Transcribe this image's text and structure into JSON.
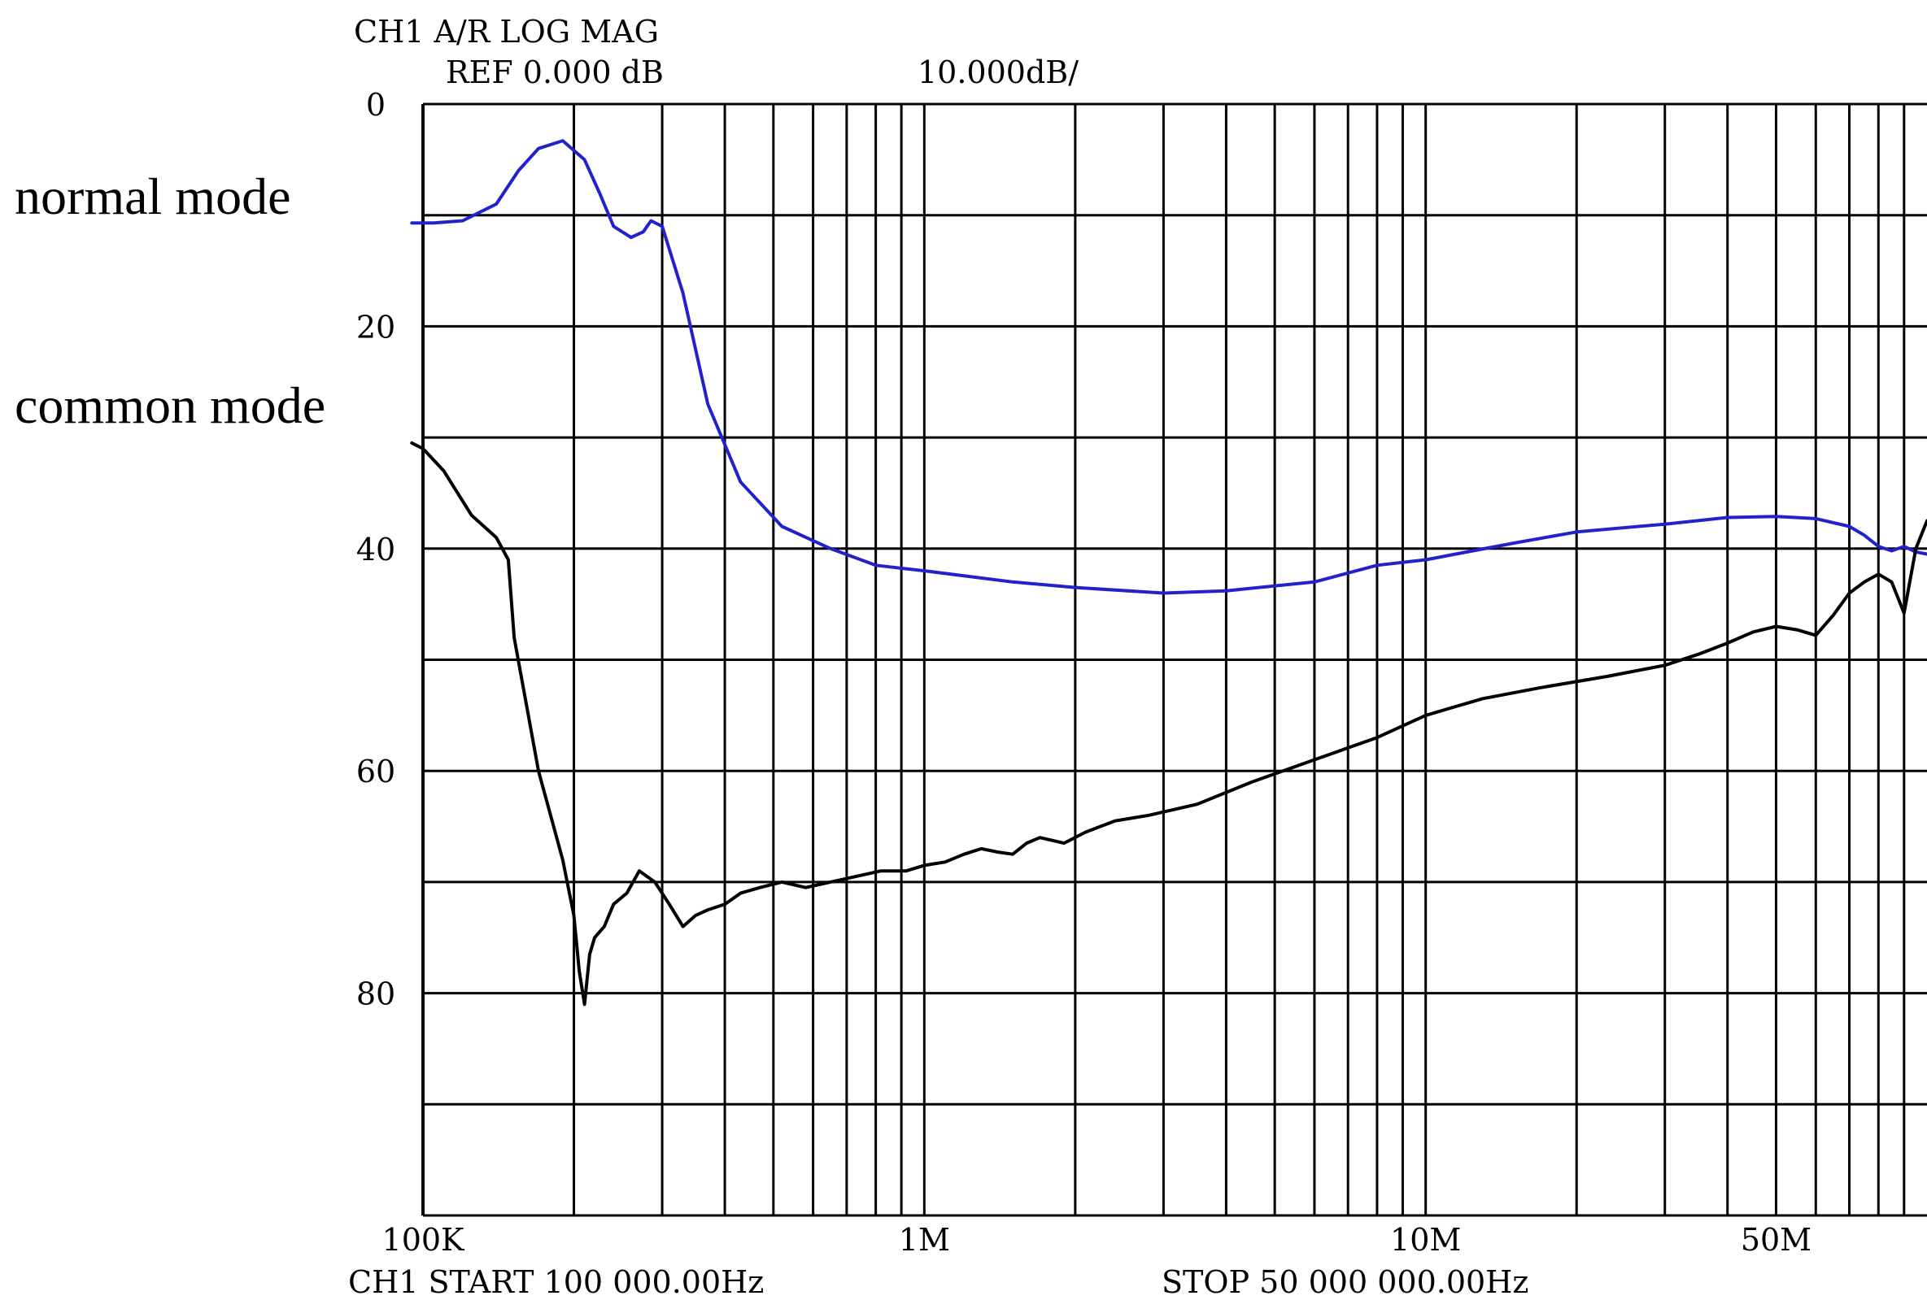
{
  "header": {
    "line1": "CH1 A/R LOG MAG",
    "ref": "REF 0.000 dB",
    "scale": "10.000dB/"
  },
  "footer": {
    "start": "CH1 START    100 000.00Hz",
    "stop": "STOP   50 000 000.00Hz"
  },
  "chart_data": {
    "type": "line",
    "title": "",
    "xlabel": "",
    "ylabel": "",
    "xscale": "log",
    "xlim": [
      100000,
      100000000
    ],
    "ylim": [
      0,
      100
    ],
    "y_inverted": true,
    "y_unit": "dB attenuation (10 dB/div)",
    "grid": true,
    "ytick_labels": [
      "0",
      "20",
      "40",
      "60",
      "80"
    ],
    "ytick_values": [
      0,
      20,
      40,
      60,
      80
    ],
    "xtick_labels": [
      "100K",
      "1M",
      "10M",
      "50M"
    ],
    "xtick_values": [
      100000,
      1000000,
      10000000,
      50000000
    ],
    "series_labels": [
      {
        "text": "normal mode",
        "color": "#2222cc"
      },
      {
        "text": "common mode",
        "color": "#000000"
      }
    ],
    "series": [
      {
        "name": "normal mode",
        "color": "#2222cc",
        "x": [
          95000,
          105000,
          120000,
          140000,
          155000,
          170000,
          190000,
          210000,
          225000,
          240000,
          260000,
          275000,
          285000,
          300000,
          330000,
          370000,
          430000,
          520000,
          650000,
          800000,
          1000000,
          1500000,
          2000000,
          3000000,
          4000000,
          6000000,
          8000000,
          10000000,
          15000000,
          20000000,
          30000000,
          40000000,
          50000000,
          60000000,
          70000000,
          75000000,
          80000000,
          85000000,
          90000000,
          95000000,
          100000000
        ],
        "y": [
          10.7,
          10.7,
          10.5,
          9,
          6,
          4,
          3.3,
          5,
          8,
          11,
          12,
          11.5,
          10.5,
          11,
          17,
          27,
          34,
          38,
          40,
          41.5,
          42,
          43,
          43.5,
          44,
          43.8,
          43,
          41.5,
          41,
          39.5,
          38.5,
          37.8,
          37.2,
          37.1,
          37.3,
          38,
          38.8,
          39.8,
          40.2,
          39.8,
          40.3,
          40.5
        ]
      },
      {
        "name": "common mode",
        "color": "#000000",
        "x": [
          95000,
          100000,
          110000,
          125000,
          140000,
          148000,
          152000,
          170000,
          190000,
          200000,
          205000,
          210000,
          215000,
          220000,
          230000,
          240000,
          255000,
          270000,
          290000,
          310000,
          330000,
          350000,
          370000,
          400000,
          430000,
          470000,
          520000,
          580000,
          650000,
          730000,
          820000,
          920000,
          1000000,
          1100000,
          1200000,
          1300000,
          1400000,
          1500000,
          1600000,
          1700000,
          1900000,
          2100000,
          2400000,
          2800000,
          3500000,
          4500000,
          6000000,
          8000000,
          10000000,
          13000000,
          17000000,
          23000000,
          30000000,
          35000000,
          40000000,
          45000000,
          50000000,
          55000000,
          60000000,
          65000000,
          70000000,
          75000000,
          80000000,
          85000000,
          90000000,
          95000000,
          100000000
        ],
        "y": [
          30.5,
          31,
          33,
          37,
          39,
          41,
          48,
          60,
          68,
          73,
          78,
          81,
          76.5,
          75,
          74,
          72,
          71,
          69,
          70,
          72,
          74,
          73,
          72.5,
          72,
          71,
          70.5,
          70,
          70.5,
          70,
          69.5,
          69,
          69,
          68.5,
          68.2,
          67.5,
          67,
          67.3,
          67.5,
          66.5,
          66,
          66.5,
          65.5,
          64.5,
          64,
          63,
          61,
          59,
          57,
          55,
          53.5,
          52.5,
          51.5,
          50.5,
          49.5,
          48.5,
          47.5,
          47,
          47.3,
          47.8,
          46,
          44,
          43,
          42.3,
          43,
          45.8,
          40,
          37.5
        ]
      }
    ]
  }
}
